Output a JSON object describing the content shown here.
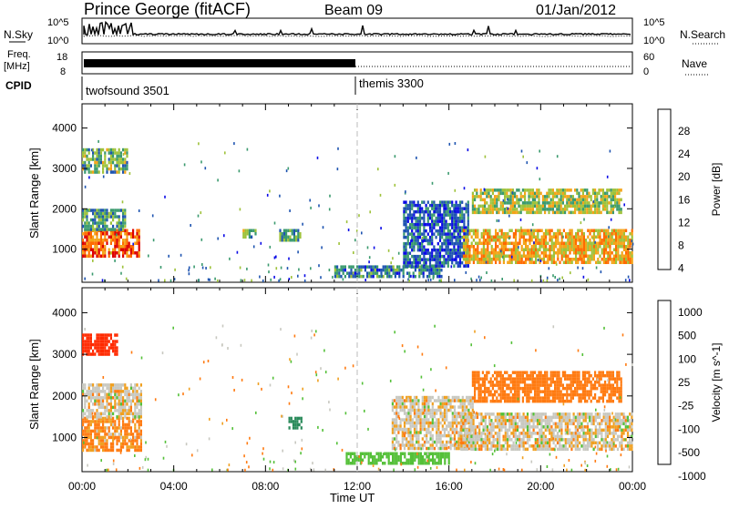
{
  "header": {
    "station": "Prince George (fitACF)",
    "beam": "Beam 09",
    "date": "01/Jan/2012"
  },
  "top_panels": {
    "nsky_label": "N.Sky",
    "nsky_ticks": [
      "10^5",
      "10^0"
    ],
    "nsearch_label": "N.Search",
    "freq_label_line1": "Freq.",
    "freq_label_line2": "[MHz]",
    "freq_ticks": [
      "18",
      "8"
    ],
    "nave_label": "Nave",
    "nave_ticks": [
      "60",
      "0"
    ],
    "cpid_label": "CPID",
    "cpid_segments": [
      {
        "name": "twofsound 3501",
        "start_hour": 0,
        "end_hour": 12
      },
      {
        "name": "themis 3300",
        "start_hour": 12,
        "end_hour": 24
      }
    ]
  },
  "colorbars": {
    "power": {
      "title": "Power [dB]",
      "ticks": [
        "28",
        "24",
        "20",
        "16",
        "12",
        "8",
        "4"
      ],
      "colors": [
        "#dd0000",
        "#ff6a00",
        "#f4a418",
        "#9ec23a",
        "#3a9a6e",
        "#1e54b0",
        "#0a0ae6"
      ]
    },
    "velocity": {
      "title": "Velocity [m s^-1]",
      "ticks": [
        "1000",
        "500",
        "100",
        "25",
        "-25",
        "-100",
        "-500",
        "-1000"
      ],
      "colors": [
        "#1a3fb0",
        "#2a8a5a",
        "#54c038",
        "#c8c8c0",
        "#f0a020",
        "#ff7a10",
        "#ff2a00"
      ]
    }
  },
  "chart_data": [
    {
      "type": "heatmap",
      "title": "Power",
      "xlabel": "Time UT",
      "ylabel": "Slant Range [km]",
      "xlim": [
        0,
        24
      ],
      "ylim": [
        180,
        4600
      ],
      "x_ticks": [
        "00:00",
        "04:00",
        "08:00",
        "12:00",
        "16:00",
        "20:00",
        "00:00"
      ],
      "y_ticks": [
        "1000",
        "2000",
        "3000",
        "4000"
      ],
      "regions": [
        {
          "x": [
            0.0,
            2.5
          ],
          "y": [
            800,
            1500
          ],
          "level_db": 24
        },
        {
          "x": [
            0.0,
            1.9
          ],
          "y": [
            1500,
            2000
          ],
          "level_db": 12
        },
        {
          "x": [
            0.0,
            2.0
          ],
          "y": [
            2900,
            3500
          ],
          "level_db": 14
        },
        {
          "x": [
            7.0,
            7.6
          ],
          "y": [
            1300,
            1500
          ],
          "level_db": 14
        },
        {
          "x": [
            8.6,
            9.5
          ],
          "y": [
            1200,
            1500
          ],
          "level_db": 12
        },
        {
          "x": [
            11.0,
            15.7
          ],
          "y": [
            300,
            600
          ],
          "level_db": 10
        },
        {
          "x": [
            14.0,
            16.8
          ],
          "y": [
            600,
            2200
          ],
          "level_db": 8
        },
        {
          "x": [
            16.6,
            24.0
          ],
          "y": [
            700,
            1500
          ],
          "level_db": 20
        },
        {
          "x": [
            17.0,
            23.5
          ],
          "y": [
            1900,
            2500
          ],
          "level_db": 16
        }
      ]
    },
    {
      "type": "heatmap",
      "title": "Velocity",
      "xlabel": "Time UT",
      "ylabel": "Slant Range [km]",
      "xlim": [
        0,
        24
      ],
      "ylim": [
        180,
        4600
      ],
      "x_ticks": [
        "00:00",
        "04:00",
        "08:00",
        "12:00",
        "16:00",
        "20:00",
        "00:00"
      ],
      "y_ticks": [
        "1000",
        "2000",
        "3000",
        "4000"
      ],
      "regions": [
        {
          "x": [
            0.0,
            2.6
          ],
          "y": [
            700,
            1500
          ],
          "level_ms": -80
        },
        {
          "x": [
            0.0,
            2.6
          ],
          "y": [
            1500,
            2300
          ],
          "level_ms": 0
        },
        {
          "x": [
            0.0,
            1.5
          ],
          "y": [
            3000,
            3500
          ],
          "level_ms": -400
        },
        {
          "x": [
            9.0,
            9.6
          ],
          "y": [
            1200,
            1500
          ],
          "level_ms": 600
        },
        {
          "x": [
            11.5,
            16.0
          ],
          "y": [
            350,
            650
          ],
          "level_ms": 150
        },
        {
          "x": [
            13.5,
            17.0
          ],
          "y": [
            700,
            2000
          ],
          "level_ms": 0
        },
        {
          "x": [
            16.5,
            24.0
          ],
          "y": [
            700,
            1600
          ],
          "level_ms": 0
        },
        {
          "x": [
            17.0,
            23.5
          ],
          "y": [
            1900,
            2600
          ],
          "level_ms": -200
        }
      ]
    }
  ]
}
